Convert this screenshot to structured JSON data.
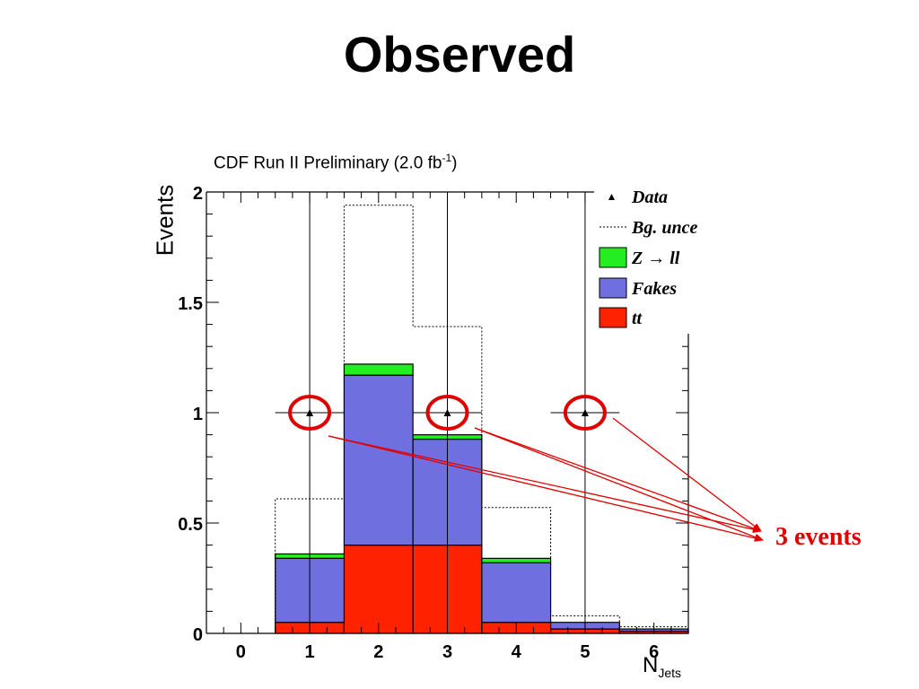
{
  "slide": {
    "title": "Observed"
  },
  "chart_data": {
    "type": "bar",
    "stacked": true,
    "title": "CDF Run II Preliminary (2.0 fb",
    "title_sup": "-1",
    "title_end": ")",
    "xlabel": "N",
    "xlabel_sub": "Jets",
    "ylabel": "Events",
    "xlim": [
      -0.5,
      6.5
    ],
    "ylim": [
      0,
      2
    ],
    "x_ticks": [
      0,
      1,
      2,
      3,
      4,
      5,
      6
    ],
    "y_ticks": [
      {
        "value": 0,
        "label": "0"
      },
      {
        "value": 0.5,
        "label": "0.5"
      },
      {
        "value": 1,
        "label": "1"
      },
      {
        "value": 1.5,
        "label": "1.5"
      },
      {
        "value": 2,
        "label": "2"
      }
    ],
    "categories": [
      0,
      1,
      2,
      3,
      4,
      5,
      6
    ],
    "series": [
      {
        "name": "tt",
        "color": "#ff2200",
        "values": [
          0,
          0.05,
          0.4,
          0.4,
          0.05,
          0.02,
          0.01
        ]
      },
      {
        "name": "Fakes",
        "color": "#6f6fe0",
        "values": [
          0,
          0.29,
          0.77,
          0.48,
          0.27,
          0.03,
          0.01
        ]
      },
      {
        "name": "Z → ll",
        "color": "#22ee22",
        "values": [
          0,
          0.02,
          0.05,
          0.02,
          0.02,
          0.0,
          0.0
        ]
      }
    ],
    "bg_uncertainty": {
      "name": "Bg. unce",
      "upper": [
        0,
        0.61,
        1.94,
        1.39,
        0.57,
        0.08,
        0.03
      ]
    },
    "data_points": {
      "name": "Data",
      "x": [
        1,
        3,
        5
      ],
      "y": [
        1,
        1,
        1
      ]
    },
    "legend": {
      "placement": "top-right",
      "entries": [
        {
          "label": "Data",
          "kind": "marker"
        },
        {
          "label": "Bg. unce",
          "kind": "dashed"
        },
        {
          "label": "Z → ll",
          "kind": "box",
          "color": "#22ee22"
        },
        {
          "label": "Fakes",
          "kind": "box",
          "color": "#6f6fe0"
        },
        {
          "label": "tt",
          "kind": "box",
          "color": "#ff2200"
        }
      ]
    },
    "annotation": {
      "text": "3 events",
      "color": "#e00000",
      "circled_x": [
        1,
        3,
        5
      ]
    }
  }
}
